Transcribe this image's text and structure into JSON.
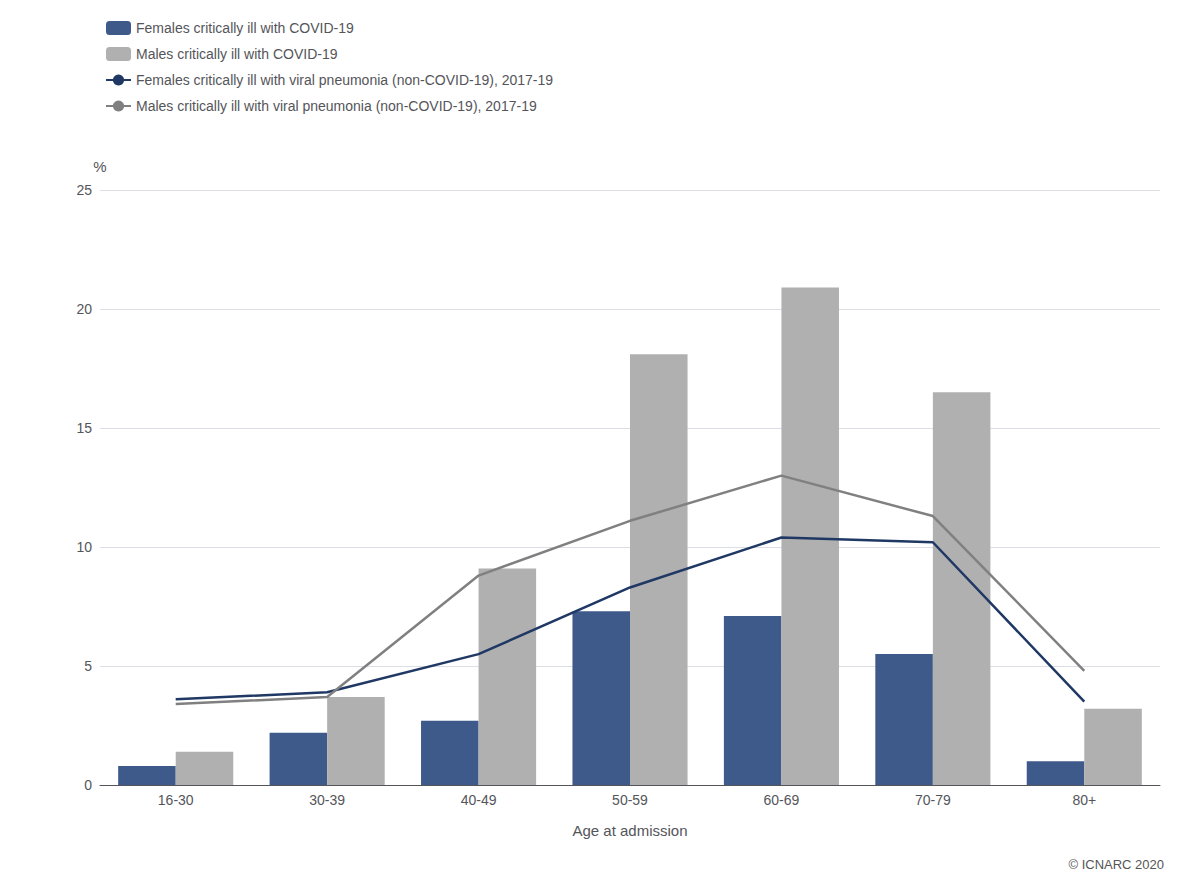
{
  "chart_data": {
    "type": "bar",
    "xlabel": "Age at admission",
    "ylabel": "%",
    "annotations": [
      "© ICNARC 2020"
    ],
    "categories": [
      "16-30",
      "30-39",
      "40-49",
      "50-59",
      "60-69",
      "70-79",
      "80+"
    ],
    "series": [
      {
        "name": "Females critically ill with COVID-19",
        "type": "bar",
        "color": "#3d5a8a",
        "values": [
          0.8,
          2.2,
          2.7,
          7.3,
          7.1,
          5.5,
          1.0
        ]
      },
      {
        "name": "Males critically ill with COVID-19",
        "type": "bar",
        "color": "#b0b0b0",
        "values": [
          1.4,
          3.7,
          9.1,
          18.1,
          20.9,
          16.5,
          3.2
        ]
      },
      {
        "name": "Females critically ill with viral pneumonia (non-COVID-19), 2017-19",
        "type": "line",
        "marker": "none",
        "color": "#1f3864",
        "values": [
          3.6,
          3.9,
          5.5,
          8.3,
          10.4,
          10.2,
          3.5
        ]
      },
      {
        "name": "Males critically ill with viral pneumonia (non-COVID-19), 2017-19",
        "type": "line",
        "marker": "none",
        "color": "#808080",
        "values": [
          3.4,
          3.7,
          8.8,
          11.1,
          13.0,
          11.3,
          4.8
        ]
      }
    ],
    "ylim": [
      0,
      25
    ],
    "yticks": [
      0,
      5,
      10,
      15,
      20,
      25
    ],
    "grid": true,
    "legend": "upper left"
  }
}
